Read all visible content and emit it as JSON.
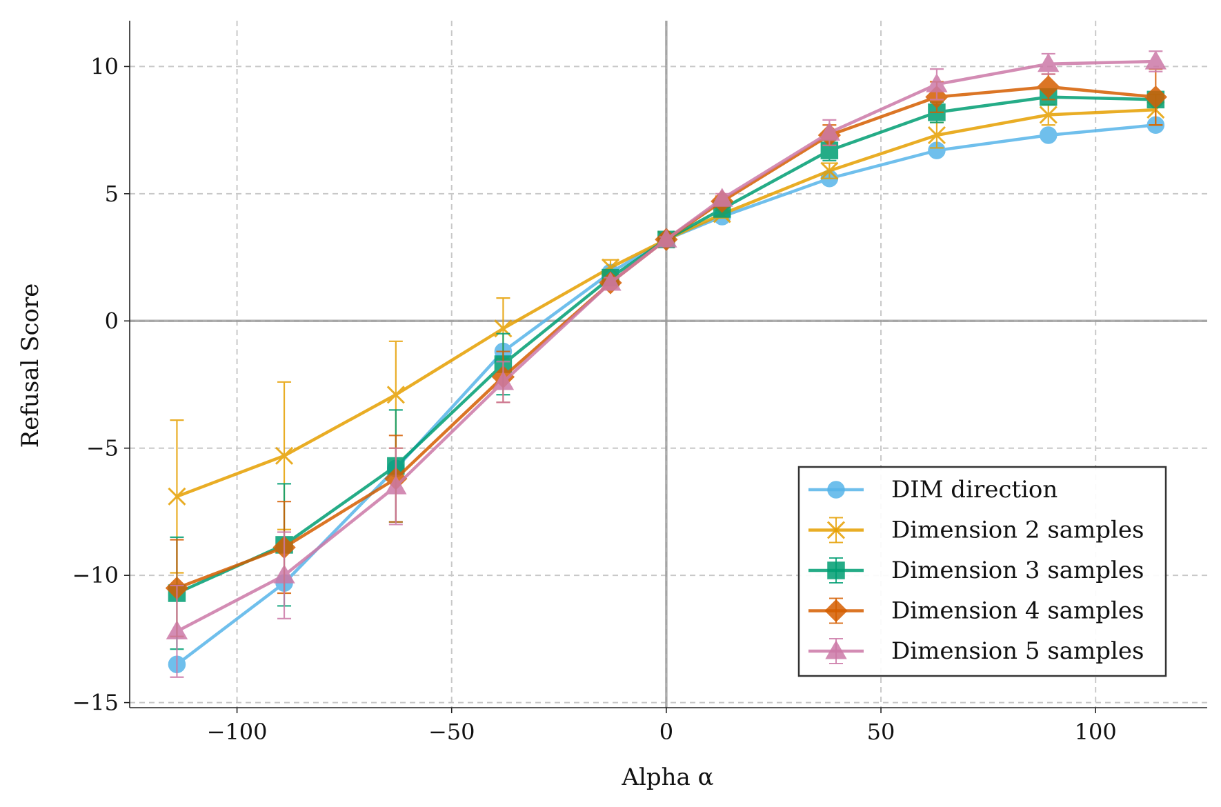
{
  "chart_data": {
    "type": "line",
    "title": "",
    "xlabel": "Alpha α",
    "ylabel": "Refusal Score",
    "xlim": [
      -125,
      126
    ],
    "ylim": [
      -15.2,
      11.8
    ],
    "xticks": [
      -100,
      -50,
      0,
      50,
      100
    ],
    "yticks": [
      -15,
      -10,
      -5,
      0,
      5,
      10
    ],
    "xtick_labels": [
      "−100",
      "−50",
      "0",
      "50",
      "100"
    ],
    "ytick_labels": [
      "−15",
      "−10",
      "−5",
      "0",
      "5",
      "10"
    ],
    "grid": true,
    "legend_position": "lower-right",
    "x": [
      -114,
      -89,
      -63,
      -38,
      -13,
      0,
      13,
      38,
      63,
      89,
      114
    ],
    "series": [
      {
        "name": "DIM direction",
        "color": "#56B4E9",
        "marker": "circle",
        "values": [
          -13.5,
          -10.3,
          -5.8,
          -1.2,
          1.9,
          3.2,
          4.1,
          5.6,
          6.7,
          7.3,
          7.7
        ],
        "err": null
      },
      {
        "name": "Dimension 2 samples",
        "color": "#E69F00",
        "marker": "x",
        "values": [
          -6.9,
          -5.3,
          -2.9,
          -0.3,
          2.1,
          3.2,
          4.2,
          5.9,
          7.3,
          8.1,
          8.3
        ],
        "err": [
          3.0,
          2.9,
          2.1,
          1.2,
          0.3,
          0.1,
          0.15,
          0.3,
          0.5,
          0.4,
          0.6
        ]
      },
      {
        "name": "Dimension 3 samples",
        "color": "#009E73",
        "marker": "square",
        "values": [
          -10.7,
          -8.8,
          -5.7,
          -1.7,
          1.7,
          3.2,
          4.4,
          6.7,
          8.2,
          8.8,
          8.7
        ],
        "err": [
          2.2,
          2.4,
          2.2,
          1.2,
          0.3,
          0.1,
          0.2,
          0.4,
          0.4,
          0.3,
          0.3
        ]
      },
      {
        "name": "Dimension 4 samples",
        "color": "#D55E00",
        "marker": "diamond",
        "values": [
          -10.5,
          -8.9,
          -6.2,
          -2.2,
          1.5,
          3.2,
          4.7,
          7.3,
          8.8,
          9.2,
          8.8
        ],
        "err": [
          1.9,
          1.8,
          1.7,
          1.0,
          0.2,
          0.1,
          0.2,
          0.4,
          0.6,
          0.5,
          1.1
        ]
      },
      {
        "name": "Dimension 5 samples",
        "color": "#CC79A7",
        "marker": "triangle",
        "values": [
          -12.2,
          -10.0,
          -6.5,
          -2.4,
          1.5,
          3.2,
          4.8,
          7.4,
          9.3,
          10.1,
          10.2
        ],
        "err": [
          1.8,
          1.7,
          1.5,
          0.8,
          0.2,
          0.1,
          0.2,
          0.5,
          0.6,
          0.4,
          0.4
        ]
      }
    ]
  }
}
